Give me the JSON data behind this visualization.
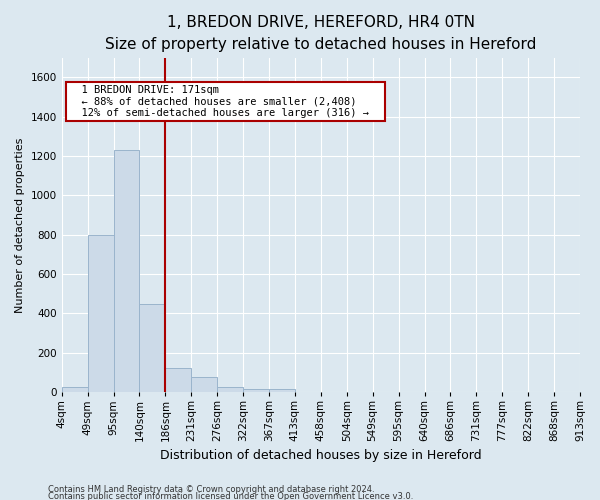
{
  "title": "1, BREDON DRIVE, HEREFORD, HR4 0TN",
  "subtitle": "Size of property relative to detached houses in Hereford",
  "xlabel": "Distribution of detached houses by size in Hereford",
  "ylabel": "Number of detached properties",
  "footnote1": "Contains HM Land Registry data © Crown copyright and database right 2024.",
  "footnote2": "Contains public sector information licensed under the Open Government Licence v3.0.",
  "bin_labels": [
    "4sqm",
    "49sqm",
    "95sqm",
    "140sqm",
    "186sqm",
    "231sqm",
    "276sqm",
    "322sqm",
    "367sqm",
    "413sqm",
    "458sqm",
    "504sqm",
    "549sqm",
    "595sqm",
    "640sqm",
    "686sqm",
    "731sqm",
    "777sqm",
    "822sqm",
    "868sqm",
    "913sqm"
  ],
  "bar_values": [
    25,
    800,
    1230,
    450,
    120,
    75,
    28,
    18,
    16,
    0,
    0,
    0,
    0,
    0,
    0,
    0,
    0,
    0,
    0,
    0
  ],
  "bar_color": "#ccdae8",
  "bar_edge_color": "#9ab4cc",
  "vline_x": 4.0,
  "vline_color": "#aa0000",
  "annotation_text": "  1 BREDON DRIVE: 171sqm  \n  ← 88% of detached houses are smaller (2,408)  \n  12% of semi-detached houses are larger (316) →  ",
  "annotation_box_color": "white",
  "annotation_box_edge_color": "#aa0000",
  "ylim": [
    0,
    1700
  ],
  "yticks": [
    0,
    200,
    400,
    600,
    800,
    1000,
    1200,
    1400,
    1600
  ],
  "background_color": "#dce8f0",
  "grid_color": "white",
  "title_fontsize": 11,
  "subtitle_fontsize": 9.5,
  "xlabel_fontsize": 9,
  "ylabel_fontsize": 8,
  "tick_fontsize": 7.5,
  "annotation_fontsize": 7.5,
  "footnote_fontsize": 6
}
